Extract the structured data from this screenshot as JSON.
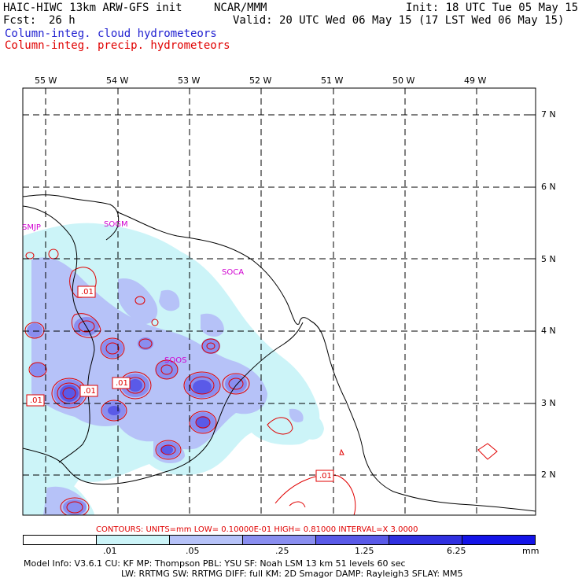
{
  "header": {
    "model": "HAIC-HIWC 13km ARW-GFS init",
    "org": "NCAR/MMM",
    "init": "Init: 18 UTC Tue 05 May 15",
    "fcst_label": "Fcst:",
    "fcst_value": "26 h",
    "valid": "Valid: 20 UTC Wed 06 May 15 (17 LST Wed 06 May 15)",
    "field_cloud": "Column-integ. cloud hydrometeors",
    "field_precip": "Column-integ. precip. hydrometeors"
  },
  "map": {
    "lon_labels": [
      "55 W",
      "54 W",
      "53 W",
      "52 W",
      "51 W",
      "50 W",
      "49 W"
    ],
    "lat_labels": [
      "7 N",
      "6 N",
      "5 N",
      "4 N",
      "3 N",
      "2 N"
    ],
    "stations": [
      "SMJP",
      "SOGM",
      "SOCA",
      "SOOS"
    ],
    "contour_labels": [
      ".01",
      ".01",
      ".01",
      ".01",
      ".01"
    ]
  },
  "contour_info": "CONTOURS:  UNITS=mm  LOW= 0.10000E-01  HIGH= 0.81000     INTERVAL=X  3.0000",
  "colorbar": {
    "colors": [
      "#ffffff",
      "#ccf4f8",
      "#b6c2f8",
      "#8a8ef0",
      "#5a5ae8",
      "#3030e0",
      "#1414e8"
    ],
    "tick_labels": [
      ".01",
      ".05",
      ".25",
      "1.25",
      "6.25"
    ],
    "units": "mm"
  },
  "footer": {
    "line1": "Model Info: V3.6.1    CU: KF      MP: Thompson     PBL: YSU      SF: Noah LSM    13 km   51 levels   60 sec",
    "line2": "LW: RRTMG    SW: RRTMG  DIFF: full    KM: 2D Smagor DAMP: Rayleigh3  SFLAY: MM5"
  },
  "colors": {
    "cloud_light": "#ccf4f8",
    "cloud_mid": "#b6c2f8",
    "cloud_dark": "#8a8ef0",
    "cloud_core": "#5a5ae8",
    "precip_contour": "#e00000",
    "station_label": "#d000d0"
  }
}
